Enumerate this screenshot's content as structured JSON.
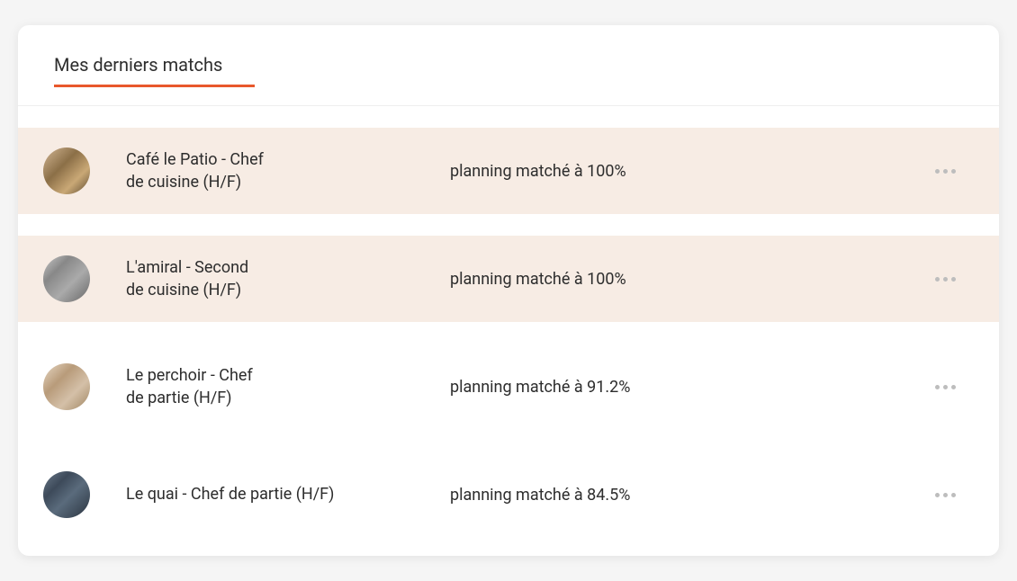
{
  "header": {
    "title": "Mes derniers matchs",
    "accent_color": "#e8582c"
  },
  "rows": [
    {
      "title_line1": "Café le Patio - Chef",
      "title_line2": "de cuisine (H/F)",
      "match_text": "planning matché à 100%",
      "highlighted": true,
      "avatar_class": "avatar-1"
    },
    {
      "title_line1": "L'amiral - Second",
      "title_line2": "de cuisine (H/F)",
      "match_text": "planning matché à 100%",
      "highlighted": true,
      "avatar_class": "avatar-2"
    },
    {
      "title_line1": "Le perchoir - Chef",
      "title_line2": "de partie (H/F)",
      "match_text": "planning matché à 91.2%",
      "highlighted": false,
      "avatar_class": "avatar-3"
    },
    {
      "title_line1": "Le quai - Chef de partie (H/F)",
      "title_line2": "",
      "match_text": "planning matché à 84.5%",
      "highlighted": false,
      "avatar_class": "avatar-4"
    }
  ],
  "colors": {
    "highlight_bg": "#f7ece4",
    "text_primary": "#2d2d2d",
    "dot_color": "#bdbdbd",
    "divider": "#eeeeee",
    "card_bg": "#ffffff"
  }
}
